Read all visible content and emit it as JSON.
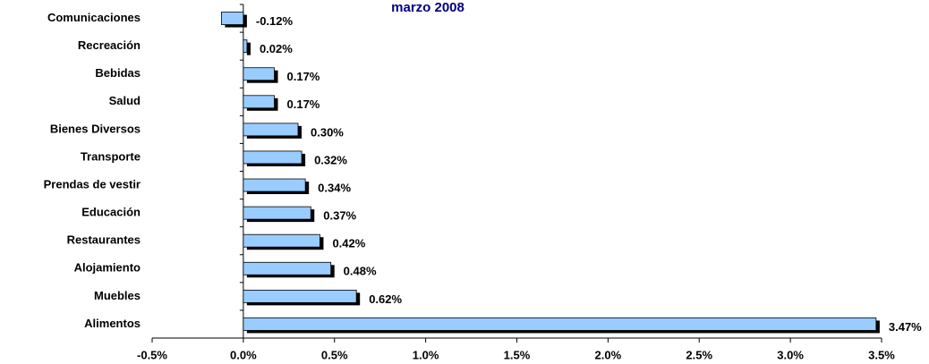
{
  "chart_data": {
    "type": "hbar",
    "title": "marzo 2008",
    "categories": [
      "Comunicaciones",
      "Recreación",
      "Bebidas",
      "Salud",
      "Bienes Diversos",
      "Transporte",
      "Prendas de vestir",
      "Educación",
      "Restaurantes",
      "Alojamiento",
      "Muebles",
      "Alimentos"
    ],
    "values": [
      -0.12,
      0.02,
      0.17,
      0.17,
      0.3,
      0.32,
      0.34,
      0.37,
      0.42,
      0.48,
      0.62,
      3.47
    ],
    "value_labels": [
      "-0.12%",
      "0.02%",
      "0.17%",
      "0.17%",
      "0.30%",
      "0.32%",
      "0.34%",
      "0.37%",
      "0.42%",
      "0.48%",
      "0.62%",
      "3.47%"
    ],
    "color": "#99ccff",
    "xlim": [
      -0.5,
      3.5
    ],
    "xticks": [
      {
        "value": -0.5,
        "label": "-0.5%"
      },
      {
        "value": 0,
        "label": "0.0%"
      },
      {
        "value": 0.5,
        "label": "0.5%"
      },
      {
        "value": 1,
        "label": "1.0%"
      },
      {
        "value": 1.5,
        "label": "1.5%"
      },
      {
        "value": 2,
        "label": "2.0%"
      },
      {
        "value": 2.5,
        "label": "2.5%"
      },
      {
        "value": 3,
        "label": "3.0%"
      },
      {
        "value": 3.5,
        "label": "3.5%"
      }
    ],
    "grid": false
  }
}
